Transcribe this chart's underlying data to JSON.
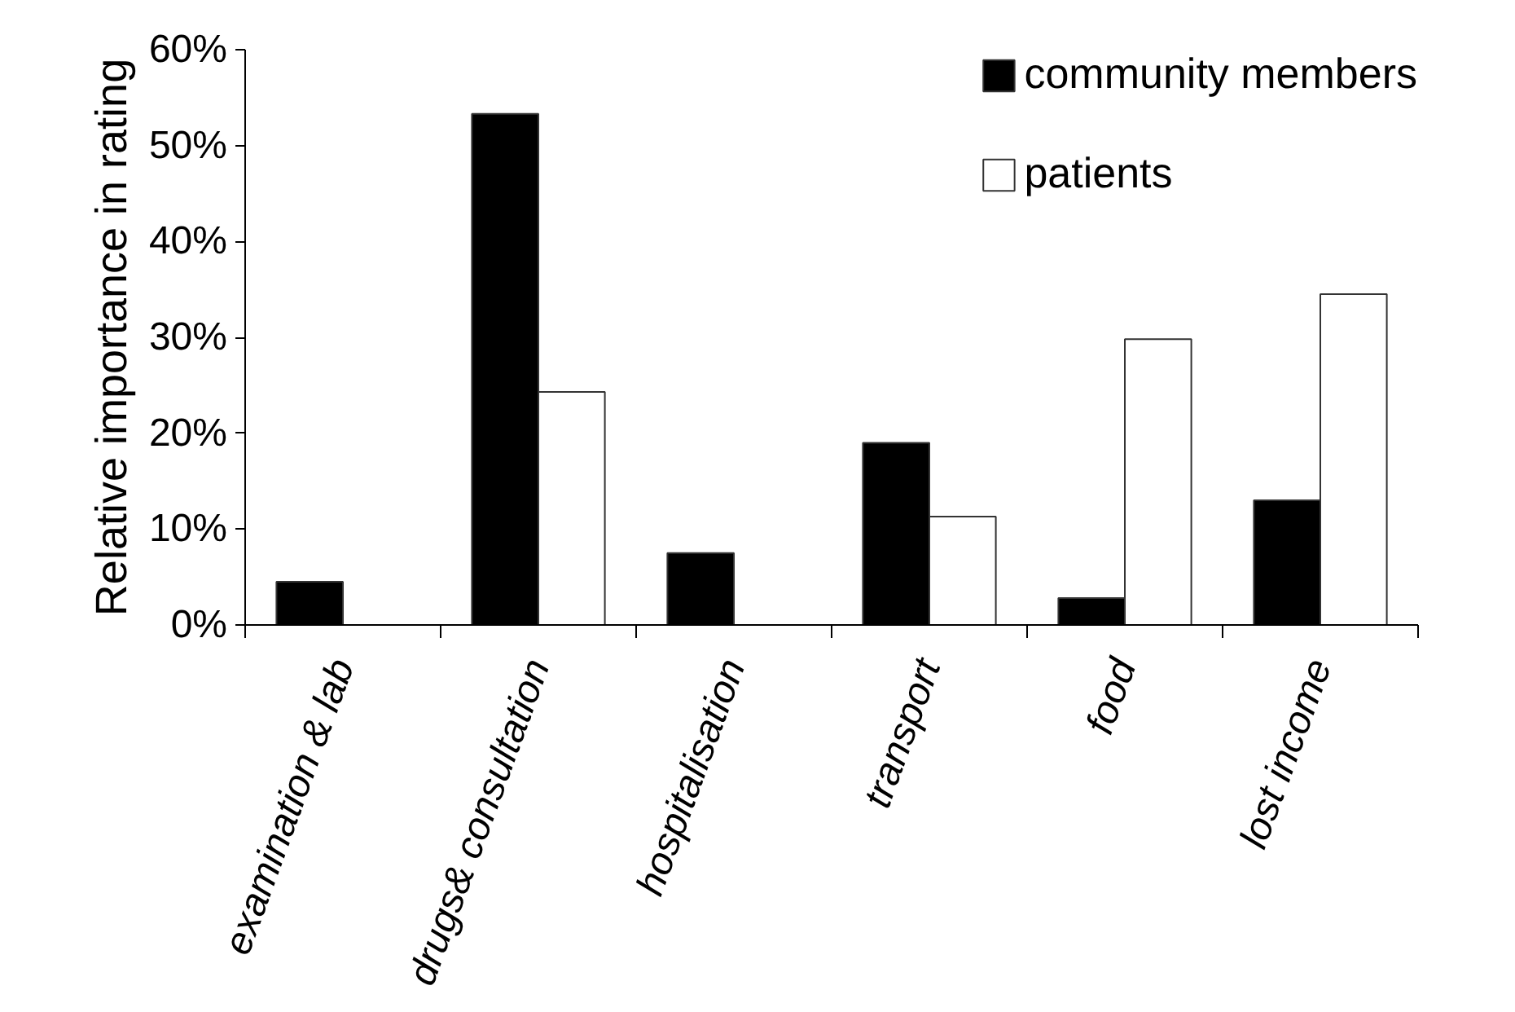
{
  "chart_data": {
    "type": "bar",
    "ylabel": "Relative importance in rating",
    "categories": [
      "examination & lab",
      "drugs& consultation",
      "hospitalisation",
      "transport",
      "food",
      "lost income"
    ],
    "series": [
      {
        "name": "community members",
        "color": "#000000",
        "values": [
          0.045,
          0.533,
          0.075,
          0.19,
          0.028,
          0.13
        ]
      },
      {
        "name": "patients",
        "color": "#ffffff",
        "values": [
          null,
          0.243,
          null,
          0.113,
          0.298,
          0.345
        ]
      }
    ],
    "ylim": [
      0,
      0.6
    ],
    "yticks": [
      {
        "value": 0,
        "label": "0%"
      },
      {
        "value": 0.1,
        "label": "10%"
      },
      {
        "value": 0.2,
        "label": "20%"
      },
      {
        "value": 0.3,
        "label": "30%"
      },
      {
        "value": 0.4,
        "label": "40%"
      },
      {
        "value": 0.5,
        "label": "50%"
      },
      {
        "value": 0.6,
        "label": "60%"
      }
    ],
    "grid": false,
    "legend": "top right"
  }
}
